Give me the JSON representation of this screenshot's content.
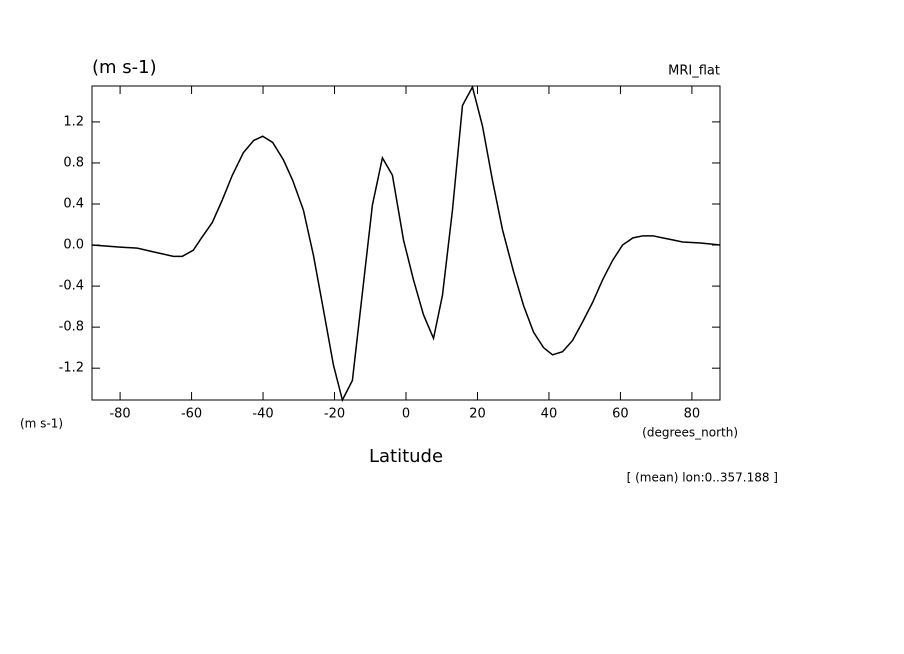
{
  "chart_data": {
    "type": "line",
    "title": "MRI_flat",
    "y_unit": "(m s-1)",
    "x_unit_left": "(m s-1)",
    "x_unit": "(degrees_north)",
    "xlabel": "Latitude",
    "note": "[ (mean) lon:0..357.188 ]",
    "x": [
      -87.8,
      -80,
      -75.2,
      -70.2,
      -65.1,
      -62.6,
      -59.5,
      -57.6,
      -54.2,
      -51.4,
      -48.6,
      -45.5,
      -42.6,
      -40.1,
      -37.3,
      -34.3,
      -31.7,
      -28.7,
      -25.9,
      -23.1,
      -20.3,
      -17.8,
      -15,
      -9.4,
      -6.6,
      -3.8,
      -0.7,
      2.1,
      4.9,
      7.7,
      10.2,
      13,
      15.8,
      18.6,
      21.4,
      24.2,
      27,
      30.1,
      32.9,
      35.7,
      38.5,
      41,
      43.8,
      46.6,
      49.4,
      52.2,
      55,
      57.8,
      60.6,
      63.5,
      66.3,
      69.1,
      71.8,
      74.6,
      77.4,
      82.4,
      88
    ],
    "series": [
      {
        "color": "#000000",
        "values": [
          0,
          -0.02,
          -0.03,
          -0.07,
          -0.11,
          -0.11,
          -0.05,
          0.05,
          0.22,
          0.44,
          0.68,
          0.9,
          1.02,
          1.06,
          1.0,
          0.83,
          0.63,
          0.34,
          -0.1,
          -0.63,
          -1.17,
          -1.51,
          -1.32,
          0.39,
          0.85,
          0.68,
          0.05,
          -0.34,
          -0.68,
          -0.91,
          -0.49,
          0.34,
          1.36,
          1.54,
          1.16,
          0.63,
          0.15,
          -0.26,
          -0.59,
          -0.85,
          -1.0,
          -1.07,
          -1.04,
          -0.93,
          -0.75,
          -0.56,
          -0.34,
          -0.15,
          0.0,
          0.07,
          0.09,
          0.09,
          0.07,
          0.05,
          0.03,
          0.02,
          0
        ]
      }
    ],
    "xlim": [
      -87.86,
      87.86
    ],
    "ylim": [
      -1.51,
      1.55
    ],
    "xticks": [
      -80,
      -60,
      -40,
      -20,
      0,
      20,
      40,
      60,
      80
    ],
    "yticks": [
      -1.2,
      -0.8,
      -0.4,
      {
        "value": 0,
        "label": "0.0"
      },
      0.4,
      0.8,
      1.2
    ]
  }
}
